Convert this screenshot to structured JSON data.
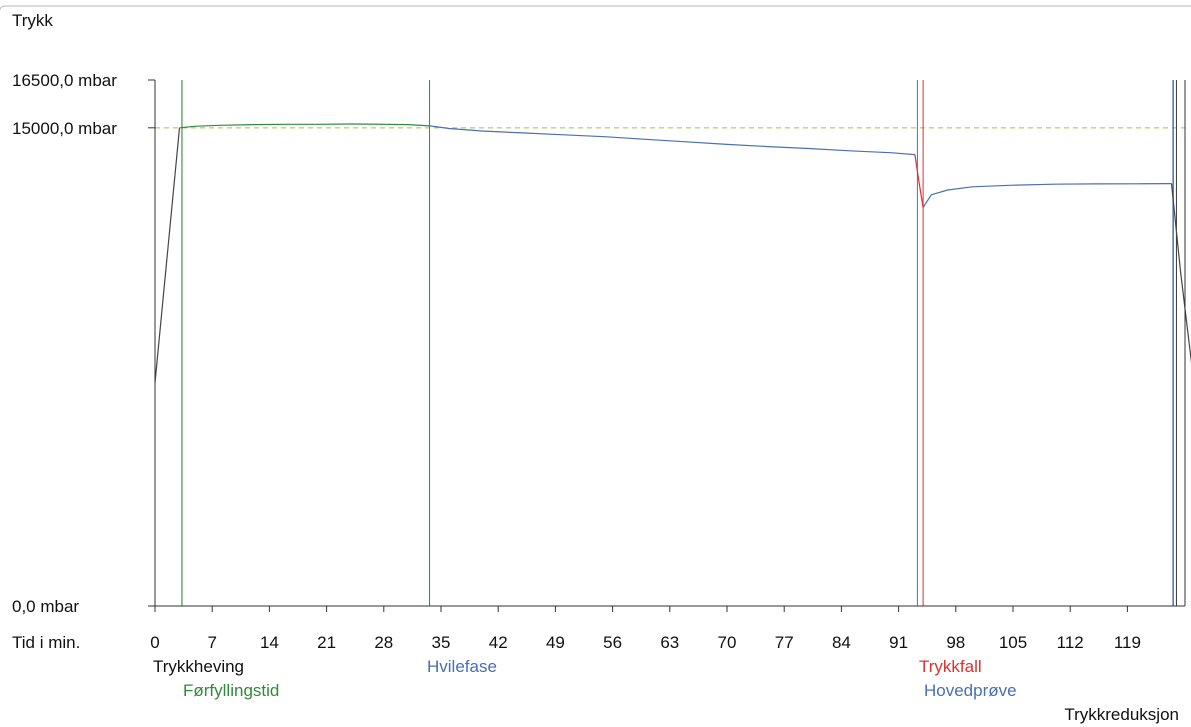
{
  "chart_data": {
    "type": "line",
    "title": "Trykk",
    "xlabel": "Tid i min.",
    "ylabel": "Trykk",
    "xlim": [
      0,
      128
    ],
    "ylim": [
      0,
      16500
    ],
    "x_ticks": [
      0,
      7,
      14,
      21,
      28,
      35,
      42,
      49,
      56,
      63,
      70,
      77,
      84,
      91,
      98,
      105,
      112,
      119
    ],
    "y_tick_labels": [
      {
        "value": 16500,
        "label": "16500,0 mbar"
      },
      {
        "value": 15000,
        "label": "15000,0 mbar"
      },
      {
        "value": 0,
        "label": "0,0 mbar"
      }
    ],
    "reference_line": {
      "value": 15000,
      "color": "#9cc44a",
      "style": "dashed"
    },
    "series": [
      {
        "color": "#444444",
        "points": [
          [
            0,
            7000
          ],
          [
            3.0,
            15000
          ]
        ]
      },
      {
        "color": "#2e8b3a",
        "points": [
          [
            3.0,
            15000
          ],
          [
            5,
            15050
          ],
          [
            8,
            15080
          ],
          [
            12,
            15100
          ],
          [
            16,
            15110
          ],
          [
            20,
            15110
          ],
          [
            24,
            15120
          ],
          [
            28,
            15110
          ],
          [
            31,
            15100
          ],
          [
            33.6,
            15060
          ]
        ]
      },
      {
        "color": "#4a6fb5",
        "points": [
          [
            33.6,
            15060
          ],
          [
            36,
            14980
          ],
          [
            40,
            14900
          ],
          [
            45,
            14840
          ],
          [
            50,
            14780
          ],
          [
            55,
            14720
          ],
          [
            60,
            14640
          ],
          [
            65,
            14560
          ],
          [
            70,
            14480
          ],
          [
            75,
            14410
          ],
          [
            80,
            14350
          ],
          [
            85,
            14280
          ],
          [
            90,
            14220
          ],
          [
            93.0,
            14160
          ]
        ]
      },
      {
        "color": "#e03030",
        "points": [
          [
            93.0,
            14160
          ],
          [
            93.5,
            13300
          ],
          [
            94.0,
            12500
          ]
        ]
      },
      {
        "color": "#4a6fb5",
        "points": [
          [
            94.0,
            12500
          ],
          [
            95,
            12900
          ],
          [
            97,
            13050
          ],
          [
            100,
            13150
          ],
          [
            105,
            13200
          ],
          [
            110,
            13230
          ],
          [
            115,
            13240
          ],
          [
            120,
            13245
          ],
          [
            124.4,
            13250
          ]
        ]
      },
      {
        "color": "#444444",
        "points": [
          [
            124.4,
            13250
          ],
          [
            125.5,
            10500
          ],
          [
            127,
            7300
          ]
        ]
      }
    ],
    "phases": [
      {
        "label": "Trykkheving",
        "x": 3.3,
        "color": "#444444",
        "label_color": "#111111",
        "row": 0
      },
      {
        "label": "Førfyllingstid",
        "x": 3.3,
        "color": "#2e8b3a",
        "label_color": "#2e8b3a",
        "row": 1
      },
      {
        "label": "Hvilefase",
        "x": 33.6,
        "color": "#2e8b3a",
        "label_color": "#4a6fb5",
        "row": 0
      },
      {
        "label": "Trykkfall",
        "x": 94.0,
        "color": "#e03030",
        "label_color": "#e03030",
        "row": 0
      },
      {
        "label": "Hovedprøve",
        "x": 93.3,
        "color": "#4a6fb5",
        "label_color": "#4a6fb5",
        "row": 1
      },
      {
        "label": "Trykkreduksjon",
        "x": 125.0,
        "color": "#333333",
        "label_color": "#111111",
        "row": 2
      }
    ],
    "extra_vlines": [
      {
        "x": 124.6,
        "color": "#4a6fb5"
      }
    ],
    "grid": false
  }
}
